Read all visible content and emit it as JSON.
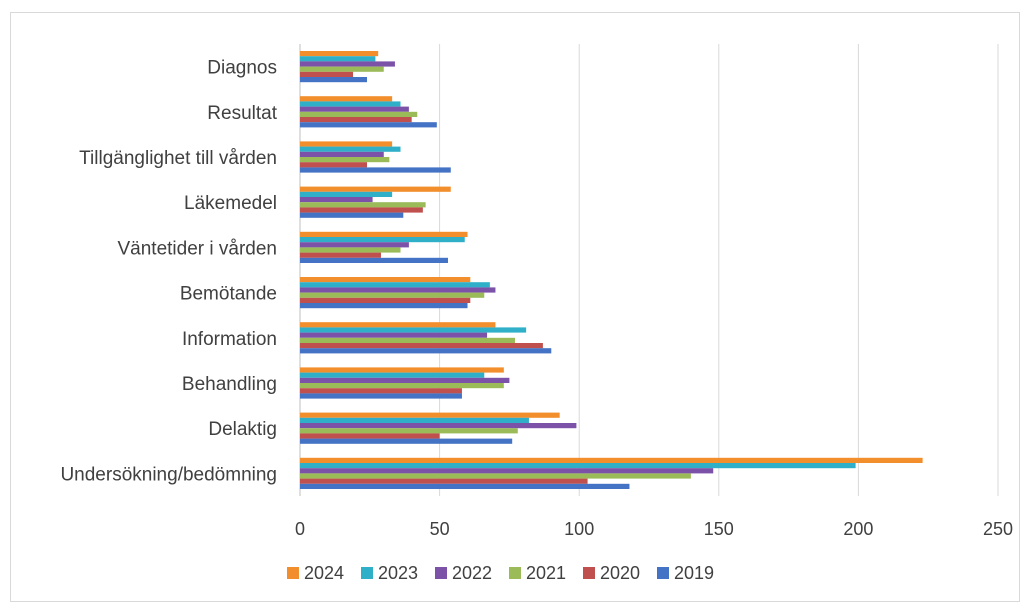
{
  "chart_data": {
    "type": "bar",
    "orientation": "horizontal",
    "title": "",
    "xlabel": "",
    "ylabel": "",
    "xlim": [
      0,
      250
    ],
    "x_ticks": [
      "0",
      "50",
      "100",
      "150",
      "200",
      "250"
    ],
    "grid": true,
    "legend_position": "bottom",
    "categories": [
      "Diagnos",
      "Resultat",
      "Tillgänglighet till vården",
      "Läkemedel",
      "Väntetider i vården",
      "Bemötande",
      "Information",
      "Behandling",
      "Delaktig",
      "Undersökning/bedömning"
    ],
    "series": [
      {
        "name": "2024",
        "color": "#f28e2b",
        "values": [
          28,
          33,
          33,
          54,
          60,
          61,
          70,
          73,
          93,
          223
        ]
      },
      {
        "name": "2023",
        "color": "#2fb0c8",
        "values": [
          27,
          36,
          36,
          33,
          59,
          68,
          81,
          66,
          82,
          199
        ]
      },
      {
        "name": "2022",
        "color": "#7b52a8",
        "values": [
          34,
          39,
          30,
          26,
          39,
          70,
          67,
          75,
          99,
          148
        ]
      },
      {
        "name": "2021",
        "color": "#9bbb59",
        "values": [
          30,
          42,
          32,
          45,
          36,
          66,
          77,
          73,
          78,
          140
        ]
      },
      {
        "name": "2020",
        "color": "#c0504d",
        "values": [
          19,
          40,
          24,
          44,
          29,
          61,
          87,
          58,
          50,
          103
        ]
      },
      {
        "name": "2019",
        "color": "#4472c4",
        "values": [
          24,
          49,
          54,
          37,
          53,
          60,
          90,
          58,
          76,
          118
        ]
      }
    ]
  }
}
